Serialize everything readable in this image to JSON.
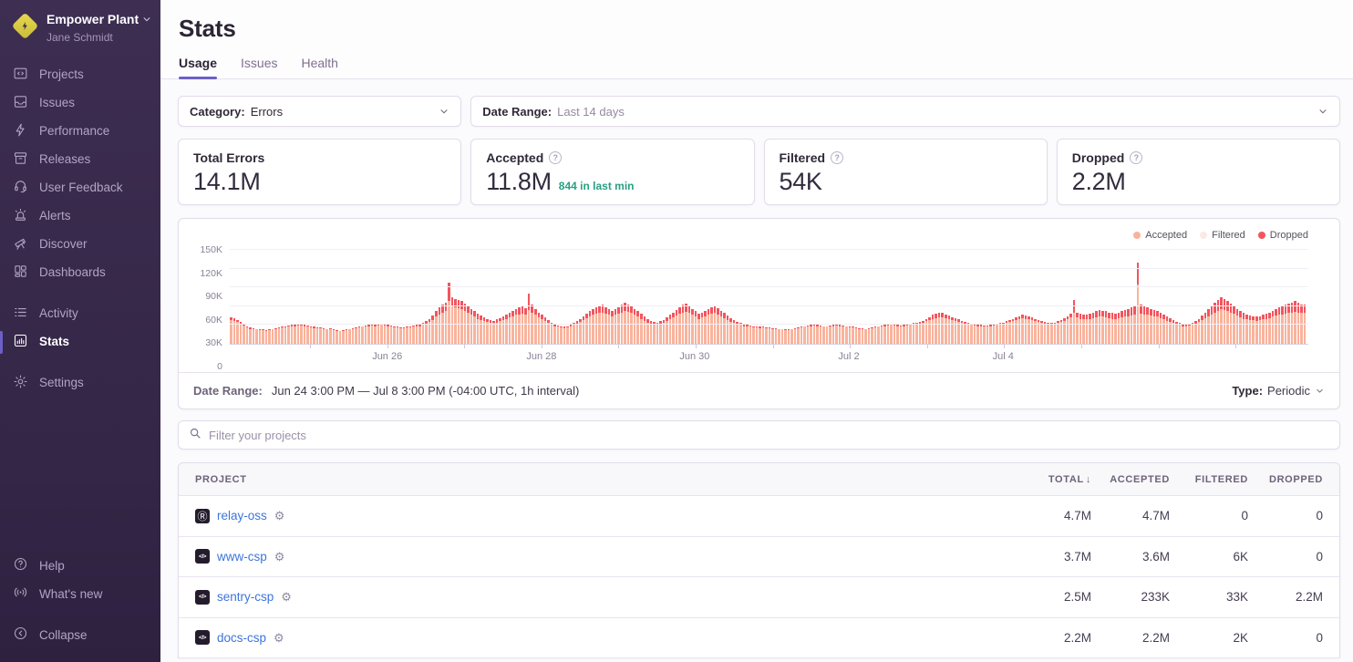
{
  "org": {
    "name": "Empower Plant",
    "user": "Jane Schmidt"
  },
  "sidebar": {
    "primary": [
      {
        "label": "Projects"
      },
      {
        "label": "Issues"
      },
      {
        "label": "Performance"
      },
      {
        "label": "Releases"
      },
      {
        "label": "User Feedback"
      },
      {
        "label": "Alerts"
      },
      {
        "label": "Discover"
      },
      {
        "label": "Dashboards"
      }
    ],
    "secondary": [
      {
        "label": "Activity"
      },
      {
        "label": "Stats",
        "active": true
      }
    ],
    "settings": {
      "label": "Settings"
    },
    "footer": [
      {
        "label": "Help"
      },
      {
        "label": "What's new"
      }
    ],
    "collapse": {
      "label": "Collapse"
    }
  },
  "header": {
    "title": "Stats",
    "tabs": [
      {
        "label": "Usage",
        "active": true
      },
      {
        "label": "Issues"
      },
      {
        "label": "Health"
      }
    ]
  },
  "filters": {
    "category_label": "Category:",
    "category_value": "Errors",
    "date_range_label": "Date Range:",
    "date_range_value": "Last 14 days"
  },
  "stat_cards": [
    {
      "label": "Total Errors",
      "value": "14.1M"
    },
    {
      "label": "Accepted",
      "value": "11.8M",
      "sub": "844 in last min"
    },
    {
      "label": "Filtered",
      "value": "54K"
    },
    {
      "label": "Dropped",
      "value": "2.2M"
    }
  ],
  "chart_footer": {
    "label": "Date Range:",
    "value": "Jun 24 3:00 PM — Jul 8 3:00 PM (-04:00 UTC, 1h interval)",
    "type_label": "Type:",
    "type_value": "Periodic"
  },
  "project_filter": {
    "placeholder": "Filter your projects"
  },
  "table": {
    "columns": {
      "project": "PROJECT",
      "total": "TOTAL",
      "accepted": "ACCEPTED",
      "filtered": "FILTERED",
      "dropped": "DROPPED"
    },
    "sort_column": "TOTAL",
    "sort_direction": "desc",
    "rows": [
      {
        "name": "relay-oss",
        "icon": "relay-platform-icon",
        "icon_glyph": "Ⓡ",
        "total": "4.7M",
        "accepted": "4.7M",
        "filtered": "0",
        "dropped": "0"
      },
      {
        "name": "www-csp",
        "icon": "csp-platform-icon",
        "icon_glyph": "</>",
        "total": "3.7M",
        "accepted": "3.6M",
        "filtered": "6K",
        "dropped": "0"
      },
      {
        "name": "sentry-csp",
        "icon": "csp-platform-icon",
        "icon_glyph": "</>",
        "total": "2.5M",
        "accepted": "233K",
        "filtered": "33K",
        "dropped": "2.2M"
      },
      {
        "name": "docs-csp",
        "icon": "csp-platform-icon",
        "icon_glyph": "</>",
        "total": "2.2M",
        "accepted": "2.2M",
        "filtered": "2K",
        "dropped": "0"
      }
    ]
  },
  "colors": {
    "accent_purple": "#6C5FC7",
    "accepted_bar": "#f9b39c",
    "filtered_bar": "#fbe9e4",
    "dropped_bar": "#f2555e",
    "link_blue": "#3d74db",
    "teal": "#26a183"
  },
  "chart_data": {
    "type": "bar",
    "stacked": true,
    "unit": "thousands of events (K) per 1h interval",
    "x_range": "Jun 24 3:00 PM — Jul 8 3:00 PM, 1h interval (336 bars)",
    "x_axis_labels": [
      "Jun 26",
      "Jun 28",
      "Jun 30",
      "Jul 2",
      "Jul 4"
    ],
    "x_label_positions_pct": [
      14.6,
      28.9,
      43.1,
      57.4,
      71.7
    ],
    "y_ticks": [
      "0",
      "30K",
      "60K",
      "90K",
      "120K",
      "150K"
    ],
    "ylim": [
      0,
      150
    ],
    "grid": true,
    "legend_position": "top-right",
    "legend": [
      {
        "name": "Accepted",
        "color": "#f9b39c"
      },
      {
        "name": "Filtered",
        "color": "#fbe9e4"
      },
      {
        "name": "Dropped",
        "color": "#f2555e"
      }
    ],
    "series": [
      {
        "name": "Accepted",
        "color": "#f9b39c",
        "values": [
          38,
          37,
          35,
          32,
          29,
          26,
          24,
          24,
          23,
          22,
          22,
          21,
          22,
          23,
          24,
          25,
          26,
          26,
          27,
          28,
          28,
          29,
          29,
          28,
          27,
          26,
          25,
          25,
          25,
          24,
          23,
          24,
          22,
          21,
          20,
          21,
          22,
          23,
          24,
          25,
          26,
          27,
          27,
          28,
          29,
          28,
          29,
          30,
          29,
          28,
          27,
          26,
          26,
          25,
          25,
          26,
          26,
          27,
          28,
          28,
          30,
          32,
          35,
          38,
          43,
          47,
          50,
          53,
          68,
          60,
          58,
          57,
          55,
          52,
          49,
          46,
          43,
          40,
          38,
          36,
          35,
          34,
          33,
          34,
          36,
          38,
          40,
          42,
          44,
          46,
          47,
          48,
          47,
          54,
          50,
          46,
          42,
          39,
          36,
          33,
          30,
          28,
          27,
          26,
          25,
          26,
          28,
          30,
          32,
          35,
          38,
          41,
          44,
          46,
          48,
          49,
          50,
          48,
          46,
          44,
          46,
          48,
          50,
          52,
          51,
          49,
          46,
          43,
          40,
          37,
          34,
          32,
          31,
          30,
          32,
          33,
          36,
          39,
          42,
          45,
          48,
          50,
          51,
          49,
          46,
          43,
          40,
          42,
          44,
          46,
          48,
          49,
          47,
          44,
          41,
          38,
          35,
          33,
          31,
          30,
          28,
          28,
          27,
          26,
          26,
          25,
          26,
          25,
          25,
          24,
          24,
          23,
          23,
          22,
          22,
          23,
          24,
          25,
          26,
          27,
          27,
          28,
          29,
          28,
          27,
          27,
          27,
          28,
          28,
          29,
          28,
          28,
          27,
          26,
          26,
          25,
          24,
          24,
          23,
          24,
          25,
          26,
          27,
          28,
          28,
          29,
          30,
          29,
          28,
          27,
          28,
          29,
          30,
          31,
          32,
          32,
          34,
          36,
          38,
          40,
          41,
          42,
          42,
          41,
          40,
          38,
          37,
          35,
          34,
          32,
          31,
          30,
          29,
          28,
          28,
          28,
          28,
          28,
          29,
          30,
          31,
          32,
          33,
          35,
          36,
          38,
          39,
          41,
          40,
          39,
          38,
          36,
          35,
          33,
          32,
          32,
          31,
          32,
          33,
          35,
          37,
          39,
          42,
          50,
          42,
          40,
          40,
          39,
          40,
          41,
          42,
          43,
          43,
          42,
          41,
          40,
          40,
          41,
          42,
          43,
          44,
          45,
          46,
          95,
          48,
          47,
          46,
          45,
          44,
          43,
          41,
          39,
          37,
          35,
          33,
          31,
          30,
          28,
          28,
          29,
          30,
          32,
          35,
          38,
          41,
          44,
          47,
          50,
          53,
          55,
          54,
          52,
          50,
          48,
          45,
          42,
          40,
          39,
          38,
          38,
          37,
          38,
          39,
          40,
          41,
          43,
          45,
          46,
          47,
          48,
          49,
          50,
          51,
          50,
          49,
          49
        ]
      },
      {
        "name": "Filtered",
        "color": "#fbe9e4",
        "values": [
          0,
          0,
          0,
          0,
          0,
          0,
          0,
          0,
          0,
          0,
          0,
          0,
          0,
          0,
          0,
          0,
          0,
          0,
          0,
          0,
          0,
          0,
          0,
          0,
          0,
          0,
          0,
          0,
          0,
          0,
          0,
          0,
          0,
          0,
          0,
          0,
          0,
          0,
          0,
          0,
          0,
          0,
          0,
          0,
          0,
          0,
          0,
          0,
          0,
          0,
          0,
          0,
          0,
          0,
          0,
          0,
          0,
          0,
          0,
          0,
          0,
          0,
          0,
          0,
          0,
          0,
          0,
          0,
          0,
          0,
          0,
          0,
          0,
          0,
          0,
          0,
          0,
          0,
          0,
          0,
          0,
          0,
          0,
          0,
          0,
          0,
          0,
          0,
          0,
          0,
          0,
          0,
          0,
          0,
          0,
          0,
          0,
          0,
          0,
          0,
          0,
          0,
          0,
          0,
          0,
          0,
          0,
          0,
          0,
          0,
          0,
          0,
          0,
          0,
          0,
          0,
          0,
          0,
          0,
          0,
          0,
          0,
          0,
          0,
          0,
          0,
          0,
          0,
          0,
          0,
          0,
          0,
          0,
          0,
          0,
          0,
          0,
          0,
          0,
          0,
          0,
          0,
          0,
          0,
          0,
          0,
          0,
          0,
          0,
          0,
          0,
          0,
          0,
          0,
          0,
          0,
          0,
          0,
          0,
          0,
          0,
          0,
          0,
          0,
          0,
          0,
          0,
          0,
          0,
          0,
          0,
          0,
          0,
          0,
          0,
          0,
          0,
          0,
          0,
          0,
          0,
          0,
          0,
          0,
          0,
          0,
          0,
          0,
          0,
          0,
          0,
          0,
          0,
          0,
          0,
          0,
          0,
          0,
          0,
          0,
          0,
          0,
          0,
          0,
          0,
          0,
          0,
          0,
          0,
          0,
          0,
          0,
          0,
          0,
          0,
          0,
          0,
          0,
          0,
          0,
          0,
          0,
          0,
          0,
          0,
          0,
          0,
          0,
          0,
          0,
          0,
          0,
          0,
          0,
          0,
          0,
          0,
          0,
          0,
          0,
          0,
          0,
          0,
          0,
          0,
          0,
          0,
          0,
          0,
          0,
          0,
          0,
          0,
          0,
          0,
          0,
          0,
          0,
          0,
          0,
          0,
          0,
          0,
          0,
          0,
          0,
          0,
          0,
          0,
          0,
          0,
          0,
          0,
          0,
          0,
          0,
          0,
          0,
          0,
          0,
          0,
          0,
          0,
          0,
          0,
          0,
          0,
          0,
          0,
          0,
          0,
          0,
          0,
          0,
          0,
          0,
          0,
          0,
          0,
          0,
          0,
          0,
          0,
          0,
          0,
          0,
          0,
          0,
          0,
          0,
          0,
          0,
          0,
          0,
          0,
          0,
          0,
          0,
          0,
          0,
          0,
          0,
          0,
          0,
          0,
          0,
          0,
          0,
          0,
          0,
          0,
          0,
          0,
          0,
          0,
          0
        ]
      },
      {
        "name": "Dropped",
        "color": "#f2555e",
        "values": [
          4,
          4,
          3,
          3,
          2,
          2,
          2,
          1,
          1,
          1,
          1,
          1,
          1,
          1,
          1,
          1,
          1,
          2,
          2,
          2,
          2,
          2,
          2,
          2,
          2,
          2,
          2,
          1,
          1,
          1,
          1,
          1,
          1,
          1,
          1,
          1,
          1,
          1,
          1,
          1,
          1,
          1,
          2,
          2,
          2,
          2,
          2,
          2,
          2,
          2,
          2,
          2,
          1,
          1,
          1,
          1,
          2,
          2,
          2,
          3,
          3,
          4,
          5,
          7,
          9,
          11,
          12,
          13,
          30,
          15,
          14,
          13,
          13,
          12,
          11,
          10,
          9,
          8,
          7,
          6,
          5,
          4,
          4,
          5,
          5,
          6,
          7,
          8,
          9,
          10,
          11,
          12,
          10,
          26,
          12,
          9,
          8,
          7,
          6,
          5,
          4,
          3,
          2,
          2,
          2,
          2,
          2,
          3,
          4,
          5,
          6,
          7,
          8,
          9,
          10,
          11,
          12,
          10,
          9,
          8,
          9,
          10,
          12,
          13,
          12,
          11,
          10,
          9,
          8,
          7,
          6,
          5,
          4,
          4,
          4,
          5,
          6,
          7,
          8,
          9,
          10,
          12,
          13,
          11,
          10,
          9,
          8,
          8,
          9,
          10,
          10,
          11,
          10,
          9,
          8,
          7,
          6,
          5,
          4,
          3,
          3,
          2,
          2,
          2,
          2,
          2,
          1,
          1,
          1,
          1,
          1,
          1,
          1,
          1,
          1,
          1,
          1,
          1,
          1,
          1,
          2,
          2,
          2,
          2,
          2,
          1,
          1,
          1,
          2,
          2,
          2,
          1,
          1,
          1,
          1,
          1,
          1,
          1,
          1,
          1,
          1,
          1,
          1,
          1,
          2,
          2,
          2,
          2,
          2,
          2,
          2,
          2,
          2,
          2,
          2,
          3,
          3,
          4,
          5,
          6,
          7,
          8,
          7,
          6,
          5,
          5,
          4,
          4,
          3,
          3,
          2,
          2,
          2,
          2,
          2,
          1,
          1,
          2,
          2,
          2,
          2,
          2,
          3,
          3,
          4,
          4,
          5,
          5,
          5,
          5,
          4,
          4,
          3,
          3,
          3,
          2,
          2,
          2,
          3,
          3,
          4,
          5,
          6,
          20,
          8,
          8,
          7,
          7,
          8,
          9,
          10,
          11,
          10,
          10,
          9,
          9,
          8,
          9,
          10,
          11,
          12,
          13,
          14,
          35,
          14,
          13,
          12,
          11,
          10,
          9,
          9,
          8,
          7,
          6,
          5,
          4,
          3,
          3,
          2,
          2,
          3,
          4,
          5,
          7,
          9,
          11,
          13,
          15,
          17,
          19,
          18,
          16,
          14,
          12,
          11,
          10,
          9,
          8,
          7,
          6,
          6,
          6,
          7,
          8,
          9,
          10,
          11,
          12,
          13,
          14,
          15,
          16,
          17,
          15,
          14,
          13
        ]
      }
    ]
  }
}
